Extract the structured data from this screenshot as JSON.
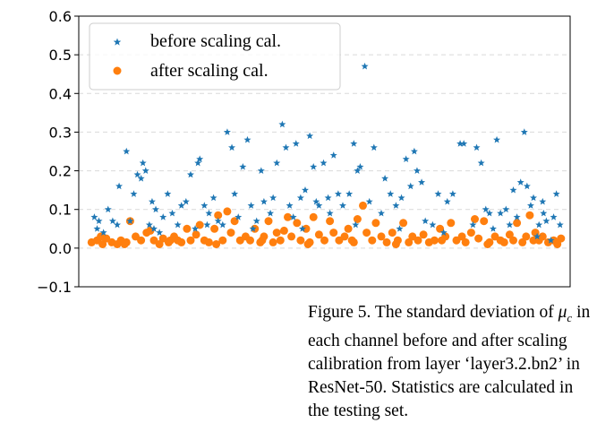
{
  "chart_data": {
    "type": "scatter",
    "title": "",
    "xlabel": "",
    "ylabel": "",
    "ylim": [
      -0.1,
      0.6
    ],
    "xlim": [
      -12,
      524
    ],
    "yticks": [
      "−0.1",
      "0.0",
      "0.1",
      "0.2",
      "0.3",
      "0.4",
      "0.5",
      "0.6"
    ],
    "grid": "horizontal dashed",
    "legend_position": "upper-left",
    "series": [
      {
        "name": "before scaling cal.",
        "marker": "star",
        "color": "#1f77b4",
        "points": [
          [
            5,
            0.08
          ],
          [
            8,
            0.05
          ],
          [
            10,
            0.07
          ],
          [
            20,
            0.1
          ],
          [
            25,
            0.07
          ],
          [
            30,
            0.06
          ],
          [
            32,
            0.16
          ],
          [
            40,
            0.25
          ],
          [
            44,
            0.07
          ],
          [
            48,
            0.14
          ],
          [
            52,
            0.19
          ],
          [
            56,
            0.18
          ],
          [
            58,
            0.22
          ],
          [
            61,
            0.2
          ],
          [
            65,
            0.06
          ],
          [
            68,
            0.12
          ],
          [
            72,
            0.1
          ],
          [
            76,
            0.04
          ],
          [
            80,
            0.08
          ],
          [
            85,
            0.14
          ],
          [
            90,
            0.09
          ],
          [
            96,
            0.06
          ],
          [
            100,
            0.11
          ],
          [
            105,
            0.12
          ],
          [
            110,
            0.19
          ],
          [
            115,
            0.05
          ],
          [
            118,
            0.22
          ],
          [
            120,
            0.23
          ],
          [
            125,
            0.11
          ],
          [
            130,
            0.09
          ],
          [
            135,
            0.13
          ],
          [
            140,
            0.07
          ],
          [
            145,
            0.06
          ],
          [
            150,
            0.3
          ],
          [
            155,
            0.26
          ],
          [
            158,
            0.14
          ],
          [
            162,
            0.08
          ],
          [
            167,
            0.21
          ],
          [
            172,
            0.28
          ],
          [
            176,
            0.11
          ],
          [
            182,
            0.07
          ],
          [
            187,
            0.2
          ],
          [
            190,
            0.12
          ],
          [
            197,
            0.09
          ],
          [
            200,
            0.13
          ],
          [
            204,
            0.22
          ],
          [
            210,
            0.32
          ],
          [
            214,
            0.26
          ],
          [
            218,
            0.11
          ],
          [
            222,
            0.08
          ],
          [
            225,
            0.27
          ],
          [
            230,
            0.13
          ],
          [
            235,
            0.15
          ],
          [
            240,
            0.29
          ],
          [
            244,
            0.21
          ],
          [
            247,
            0.12
          ],
          [
            250,
            0.11
          ],
          [
            255,
            0.22
          ],
          [
            260,
            0.13
          ],
          [
            262,
            0.09
          ],
          [
            266,
            0.24
          ],
          [
            271,
            0.14
          ],
          [
            276,
            0.11
          ],
          [
            283,
            0.14
          ],
          [
            288,
            0.27
          ],
          [
            292,
            0.2
          ],
          [
            295,
            0.21
          ],
          [
            300,
            0.47
          ],
          [
            305,
            0.12
          ],
          [
            310,
            0.26
          ],
          [
            318,
            0.09
          ],
          [
            322,
            0.18
          ],
          [
            328,
            0.14
          ],
          [
            334,
            0.11
          ],
          [
            340,
            0.13
          ],
          [
            345,
            0.23
          ],
          [
            350,
            0.16
          ],
          [
            354,
            0.25
          ],
          [
            357,
            0.2
          ],
          [
            362,
            0.17
          ],
          [
            366,
            0.07
          ],
          [
            374,
            0.06
          ],
          [
            380,
            0.14
          ],
          [
            390,
            0.12
          ],
          [
            396,
            0.14
          ],
          [
            404,
            0.27
          ],
          [
            408,
            0.27
          ],
          [
            418,
            0.06
          ],
          [
            422,
            0.26
          ],
          [
            427,
            0.22
          ],
          [
            432,
            0.1
          ],
          [
            436,
            0.09
          ],
          [
            444,
            0.28
          ],
          [
            448,
            0.09
          ],
          [
            454,
            0.1
          ],
          [
            458,
            0.06
          ],
          [
            462,
            0.15
          ],
          [
            466,
            0.08
          ],
          [
            470,
            0.17
          ],
          [
            474,
            0.3
          ],
          [
            477,
            0.16
          ],
          [
            481,
            0.11
          ],
          [
            484,
            0.13
          ],
          [
            488,
            0.03
          ],
          [
            490,
            0.06
          ],
          [
            494,
            0.12
          ],
          [
            498,
            0.07
          ],
          [
            503,
            0.02
          ],
          [
            506,
            0.08
          ],
          [
            509,
            0.14
          ],
          [
            513,
            0.06
          ],
          [
            495,
            0.09
          ],
          [
            15,
            0.04
          ],
          [
            70,
            0.05
          ],
          [
            128,
            0.06
          ],
          [
            178,
            0.05
          ],
          [
            232,
            0.05
          ],
          [
            290,
            0.06
          ],
          [
            338,
            0.05
          ],
          [
            386,
            0.04
          ],
          [
            440,
            0.05
          ]
        ]
      },
      {
        "name": "after scaling cal.",
        "marker": "circle",
        "color": "#ff7f0e",
        "points": [
          [
            2,
            0.015
          ],
          [
            8,
            0.02
          ],
          [
            14,
            0.01
          ],
          [
            18,
            0.025
          ],
          [
            24,
            0.015
          ],
          [
            30,
            0.01
          ],
          [
            34,
            0.02
          ],
          [
            40,
            0.015
          ],
          [
            44,
            0.07
          ],
          [
            50,
            0.03
          ],
          [
            56,
            0.02
          ],
          [
            62,
            0.04
          ],
          [
            66,
            0.045
          ],
          [
            70,
            0.02
          ],
          [
            76,
            0.01
          ],
          [
            80,
            0.025
          ],
          [
            86,
            0.015
          ],
          [
            92,
            0.03
          ],
          [
            96,
            0.02
          ],
          [
            100,
            0.015
          ],
          [
            106,
            0.05
          ],
          [
            110,
            0.02
          ],
          [
            116,
            0.035
          ],
          [
            120,
            0.06
          ],
          [
            125,
            0.02
          ],
          [
            130,
            0.015
          ],
          [
            136,
            0.05
          ],
          [
            140,
            0.085
          ],
          [
            145,
            0.02
          ],
          [
            150,
            0.095
          ],
          [
            154,
            0.04
          ],
          [
            158,
            0.07
          ],
          [
            164,
            0.02
          ],
          [
            170,
            0.03
          ],
          [
            175,
            0.02
          ],
          [
            180,
            0.05
          ],
          [
            186,
            0.015
          ],
          [
            190,
            0.03
          ],
          [
            195,
            0.07
          ],
          [
            200,
            0.015
          ],
          [
            204,
            0.04
          ],
          [
            208,
            0.02
          ],
          [
            212,
            0.045
          ],
          [
            216,
            0.08
          ],
          [
            220,
            0.03
          ],
          [
            226,
            0.065
          ],
          [
            230,
            0.02
          ],
          [
            236,
            0.05
          ],
          [
            240,
            0.015
          ],
          [
            244,
            0.08
          ],
          [
            250,
            0.035
          ],
          [
            256,
            0.02
          ],
          [
            262,
            0.07
          ],
          [
            266,
            0.04
          ],
          [
            272,
            0.02
          ],
          [
            278,
            0.03
          ],
          [
            282,
            0.05
          ],
          [
            288,
            0.015
          ],
          [
            292,
            0.075
          ],
          [
            298,
            0.11
          ],
          [
            302,
            0.04
          ],
          [
            308,
            0.02
          ],
          [
            312,
            0.065
          ],
          [
            318,
            0.03
          ],
          [
            324,
            0.015
          ],
          [
            330,
            0.04
          ],
          [
            336,
            0.02
          ],
          [
            342,
            0.065
          ],
          [
            348,
            0.015
          ],
          [
            352,
            0.03
          ],
          [
            358,
            0.02
          ],
          [
            364,
            0.035
          ],
          [
            370,
            0.015
          ],
          [
            376,
            0.02
          ],
          [
            382,
            0.05
          ],
          [
            388,
            0.03
          ],
          [
            394,
            0.065
          ],
          [
            400,
            0.02
          ],
          [
            406,
            0.03
          ],
          [
            410,
            0.015
          ],
          [
            416,
            0.04
          ],
          [
            420,
            0.075
          ],
          [
            424,
            0.025
          ],
          [
            430,
            0.07
          ],
          [
            436,
            0.015
          ],
          [
            442,
            0.03
          ],
          [
            448,
            0.02
          ],
          [
            452,
            0.015
          ],
          [
            458,
            0.035
          ],
          [
            462,
            0.02
          ],
          [
            466,
            0.065
          ],
          [
            472,
            0.015
          ],
          [
            476,
            0.03
          ],
          [
            480,
            0.085
          ],
          [
            486,
            0.04
          ],
          [
            490,
            0.02
          ],
          [
            494,
            0.03
          ],
          [
            500,
            0.015
          ],
          [
            506,
            0.02
          ],
          [
            510,
            0.01
          ],
          [
            514,
            0.025
          ],
          [
            12,
            0.03
          ],
          [
            38,
            0.01
          ],
          [
            88,
            0.02
          ],
          [
            138,
            0.01
          ],
          [
            188,
            0.02
          ],
          [
            238,
            0.01
          ],
          [
            286,
            0.02
          ],
          [
            334,
            0.01
          ],
          [
            384,
            0.02
          ],
          [
            434,
            0.01
          ],
          [
            484,
            0.02
          ]
        ]
      }
    ]
  },
  "caption": {
    "line1_pre": "Figure 5.  The standard deviation of ",
    "mu": "μ",
    "mu_sub": "c",
    "line1_post": " in each channel before and after scaling calibration from layer ‘layer3.2.bn2’ in ResNet-50. Statistics are calculated in the testing set."
  }
}
